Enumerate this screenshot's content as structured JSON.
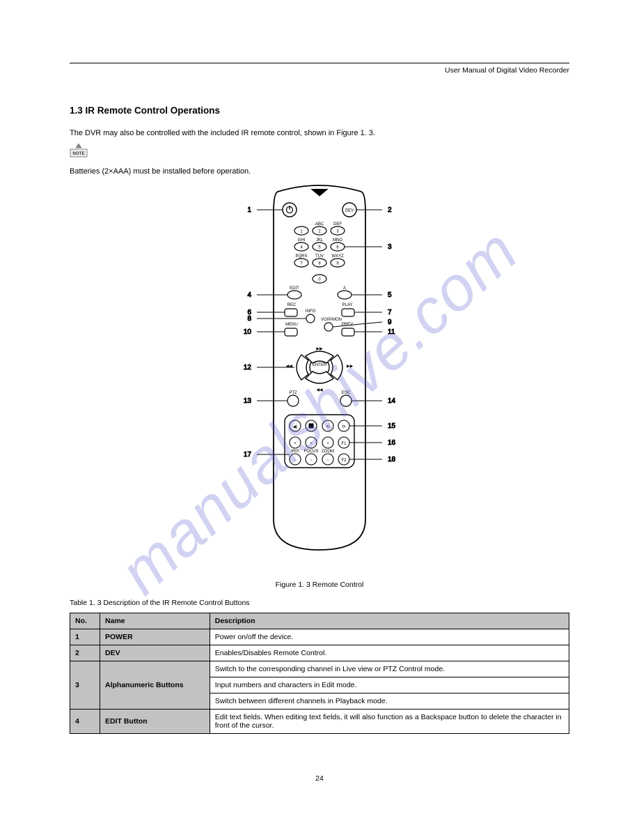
{
  "header": "User Manual of Digital Video Recorder",
  "section_title": "1.3 IR Remote Control Operations",
  "intro": "The DVR may also be controlled with the included IR remote control, shown in Figure 1. 3.",
  "note": "Batteries (2×AAA) must be installed before operation.",
  "figure_caption": "Figure 1. 3 Remote Control",
  "table_caption": "Table 1. 3 Description of the IR Remote Control Buttons",
  "watermark": "manualshive.com",
  "table": {
    "cols": [
      "No.",
      "Name",
      "Description"
    ],
    "widths": [
      "6%",
      "22%",
      "72%"
    ],
    "rows": [
      {
        "no": "1",
        "name": "POWER",
        "desc": [
          "Power on/off the device."
        ]
      },
      {
        "no": "2",
        "name": "DEV",
        "desc": [
          "Enables/Disables Remote Control."
        ]
      },
      {
        "no": "3",
        "name": "Alphanumeric Buttons",
        "desc": [
          "Switch to the corresponding channel in Live view or PTZ Control mode.",
          "Input numbers and characters in Edit mode.",
          "Switch between different channels in Playback mode."
        ]
      },
      {
        "no": "4",
        "name": "EDIT Button",
        "desc": [
          "Edit text fields. When editing text fields, it will also function as a Backspace button to delete the character in front of the cursor."
        ]
      }
    ]
  },
  "callouts": {
    "1": "1",
    "2": "2",
    "3": "3",
    "4": "4",
    "5": "5",
    "6": "6",
    "7": "7",
    "8": "8",
    "9": "9",
    "10": "10",
    "11": "11",
    "12": "12",
    "13": "13",
    "14": "14",
    "15": "15",
    "16": "16",
    "17": "17",
    "18": "18"
  },
  "remote_buttons": {
    "dev": "DEV",
    "abc": "ABC",
    "def": "DEF",
    "ghi": "GHI",
    "jkl": "JKL",
    "mno": "MNO",
    "pqrs": "PQRS",
    "tuv": "TUV",
    "wxyz": "WXYZ",
    "edit": "EDIT",
    "a": "A",
    "rec": "REC",
    "play": "PLAY",
    "info": "INFO",
    "voip": "VOIP/MON",
    "menu": "MENU",
    "prev": "PREV",
    "enter": "ENTER",
    "ptz": "PTZ",
    "esc": "ESC",
    "iris": "IRIS",
    "focus": "FOCUS",
    "zoom": "ZOOM",
    "f1": "F1",
    "f2": "F2",
    "n0": "0",
    "n1": "1",
    "n2": "2",
    "n3": "3",
    "n4": "4",
    "n5": "5",
    "n6": "6",
    "n7": "7",
    "n8": "8",
    "n9": "9"
  },
  "footer": "24",
  "colors": {
    "watermark": "rgba(95,95,210,0.28)",
    "table_header_bg": "#c2c2c2",
    "line": "#000000"
  }
}
